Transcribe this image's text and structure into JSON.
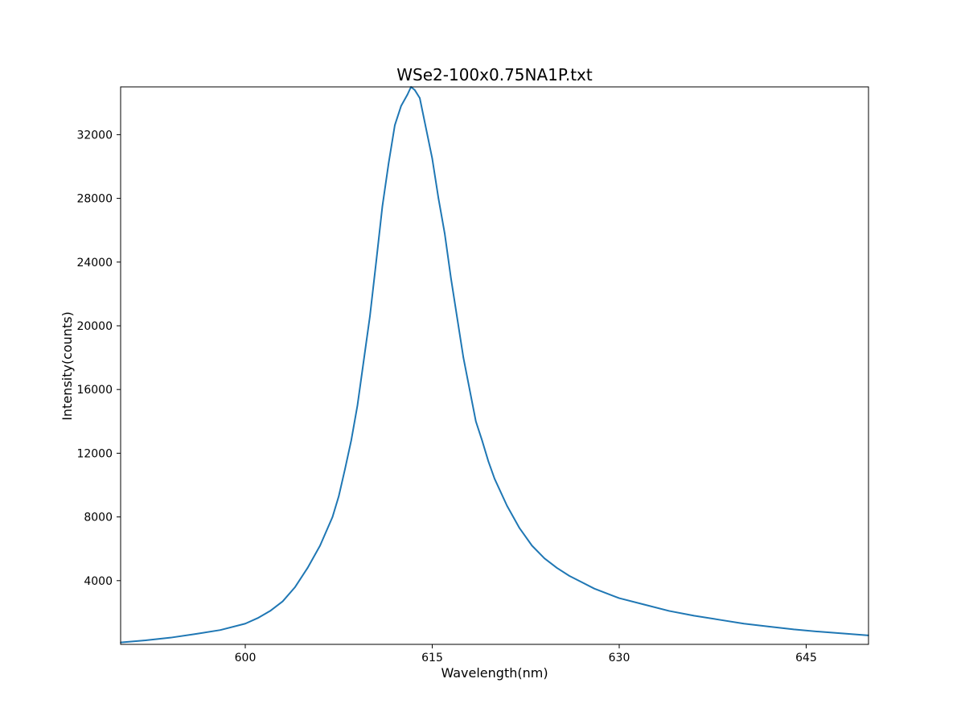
{
  "chart_data": {
    "type": "line",
    "title": "WSe2-100x0.75NA1P.txt",
    "xlabel": "Wavelength(nm)",
    "ylabel": "Intensity(counts)",
    "xlim": [
      590,
      650
    ],
    "ylim": [
      0,
      35000
    ],
    "xticks": [
      600,
      615,
      630,
      645
    ],
    "xtick_labels": [
      "600",
      "615",
      "630",
      "645"
    ],
    "yticks": [
      4000,
      8000,
      12000,
      16000,
      20000,
      24000,
      28000,
      32000
    ],
    "ytick_labels": [
      "4000",
      "8000",
      "12000",
      "16000",
      "20000",
      "24000",
      "28000",
      "32000"
    ],
    "grid": false,
    "series_color": "#1f77b4",
    "series": [
      {
        "x": [
          590,
          592,
          594,
          596,
          598,
          600,
          601,
          602,
          603,
          604,
          605,
          606,
          607,
          607.5,
          608,
          608.5,
          609,
          609.5,
          610,
          610.5,
          611,
          611.5,
          612,
          612.5,
          613,
          613.3,
          613.6,
          614,
          614.5,
          615,
          615.5,
          616,
          616.5,
          617,
          617.5,
          618,
          618.5,
          619,
          619.5,
          620,
          621,
          622,
          623,
          624,
          625,
          626,
          627,
          628,
          630,
          632,
          634,
          636,
          638,
          640,
          642,
          644,
          646,
          648,
          650
        ],
        "y": [
          120,
          250,
          420,
          650,
          900,
          1300,
          1650,
          2100,
          2700,
          3600,
          4800,
          6200,
          8000,
          9300,
          11000,
          12800,
          15000,
          17800,
          20600,
          24000,
          27500,
          30200,
          32600,
          33800,
          34500,
          35000,
          34800,
          34300,
          32400,
          30500,
          28000,
          25800,
          23000,
          20500,
          18000,
          16000,
          14000,
          12800,
          11500,
          10400,
          8700,
          7300,
          6200,
          5400,
          4800,
          4300,
          3900,
          3500,
          2900,
          2500,
          2100,
          1800,
          1550,
          1300,
          1120,
          940,
          800,
          680,
          560
        ]
      }
    ]
  }
}
